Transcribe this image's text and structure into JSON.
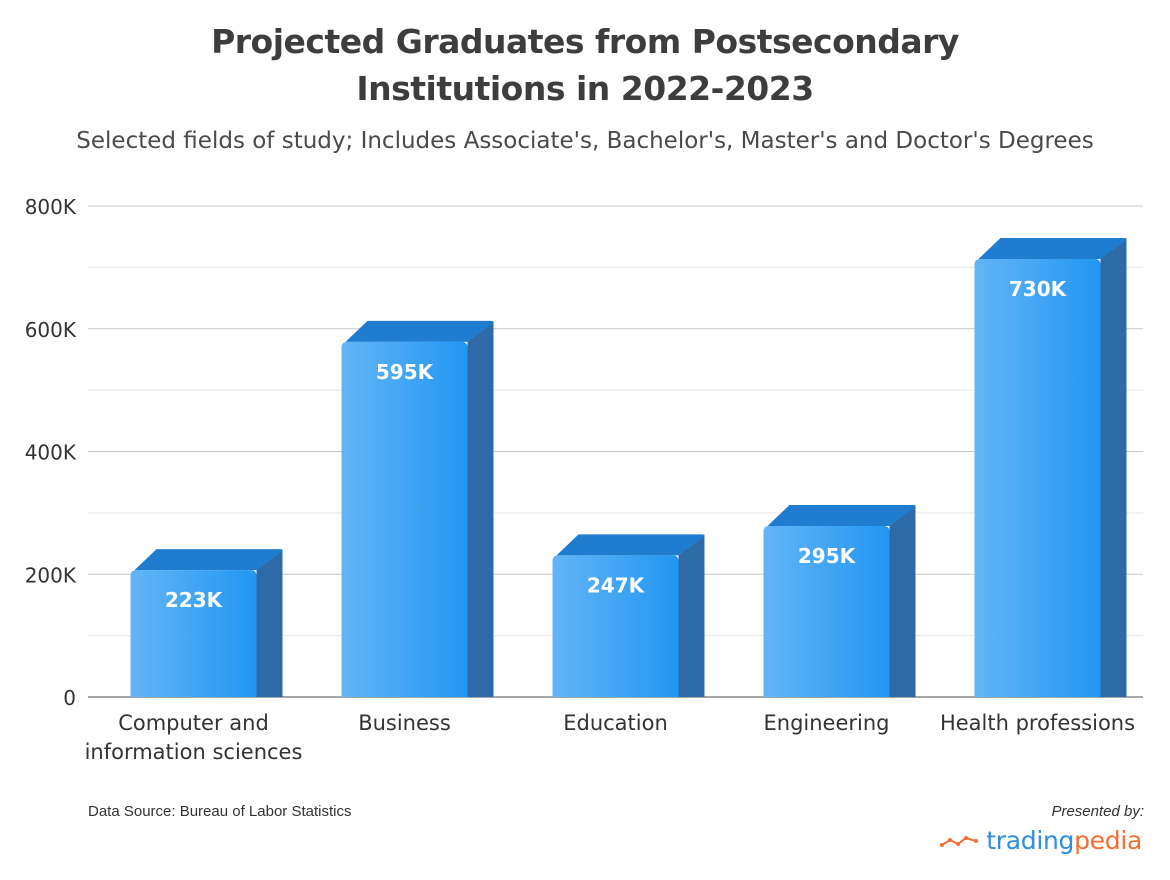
{
  "title_line1": "Projected Graduates from Postsecondary",
  "title_line2": "Institutions in 2022-2023",
  "subtitle": "Selected fields of study; Includes Associate's, Bachelor's, Master's and Doctor's Degrees",
  "source": "Data Source: Bureau of Labor Statistics",
  "presented_by": "Presented by:",
  "brand": {
    "part1": "trading",
    "part2": "pedia",
    "icon": "trend-line-icon"
  },
  "colors": {
    "bar_light": "#64b5f6",
    "bar_dark": "#2196f3",
    "bar_side": "#2f6aa8",
    "bar_top": "#1f7ccf",
    "brand_blue": "#2f8ee0",
    "brand_orange": "#f36f33"
  },
  "chart_data": {
    "type": "bar",
    "categories": [
      [
        "Computer and",
        "information sciences"
      ],
      [
        "Business"
      ],
      [
        "Education"
      ],
      [
        "Engineering"
      ],
      [
        "Health professions"
      ]
    ],
    "values": [
      223000,
      595000,
      247000,
      295000,
      730000
    ],
    "value_labels": [
      "223K",
      "595K",
      "247K",
      "295K",
      "730K"
    ],
    "yticks": [
      0,
      200000,
      400000,
      600000,
      800000
    ],
    "ytick_labels": [
      "0",
      "200K",
      "400K",
      "600K",
      "800K"
    ],
    "ylim": [
      0,
      800000
    ],
    "grid": true,
    "style": "3d-bars"
  }
}
